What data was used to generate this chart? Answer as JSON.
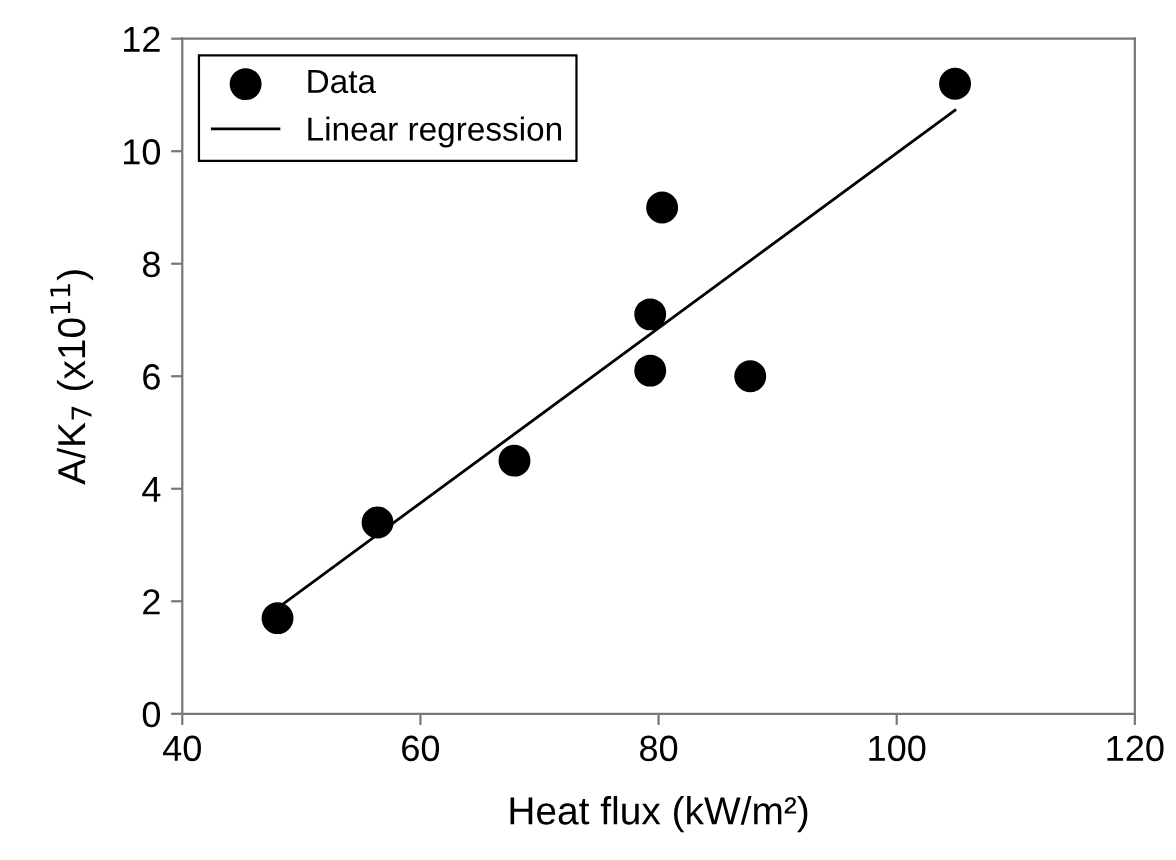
{
  "chart_data": {
    "type": "scatter",
    "xlabel": "Heat flux (kW/m²)",
    "ylabel": "A/K$_{7}$ (x10$^{11}$)",
    "xlim": [
      40,
      120
    ],
    "xticks": [
      40,
      60,
      80,
      100,
      120
    ],
    "ylim": [
      0,
      12
    ],
    "yticks": [
      0,
      2,
      4,
      6,
      8,
      10,
      12
    ],
    "grid": false,
    "legend": "top left",
    "series": [
      {
        "name": "Data",
        "color": "#000000",
        "marker": "circle",
        "x": [
          48,
          56.4,
          67.9,
          79.3,
          79.3,
          80.3,
          87.7,
          104.9
        ],
        "values": [
          1.7,
          3.4,
          4.5,
          6.1,
          7.1,
          9.0,
          6.0,
          11.2
        ]
      },
      {
        "name": "Linear regression",
        "type": "line",
        "color": "#000000",
        "marker": "none",
        "line_style": "solid",
        "x": [
          48,
          104.9
        ],
        "values": [
          1.88,
          10.73
        ]
      }
    ]
  }
}
